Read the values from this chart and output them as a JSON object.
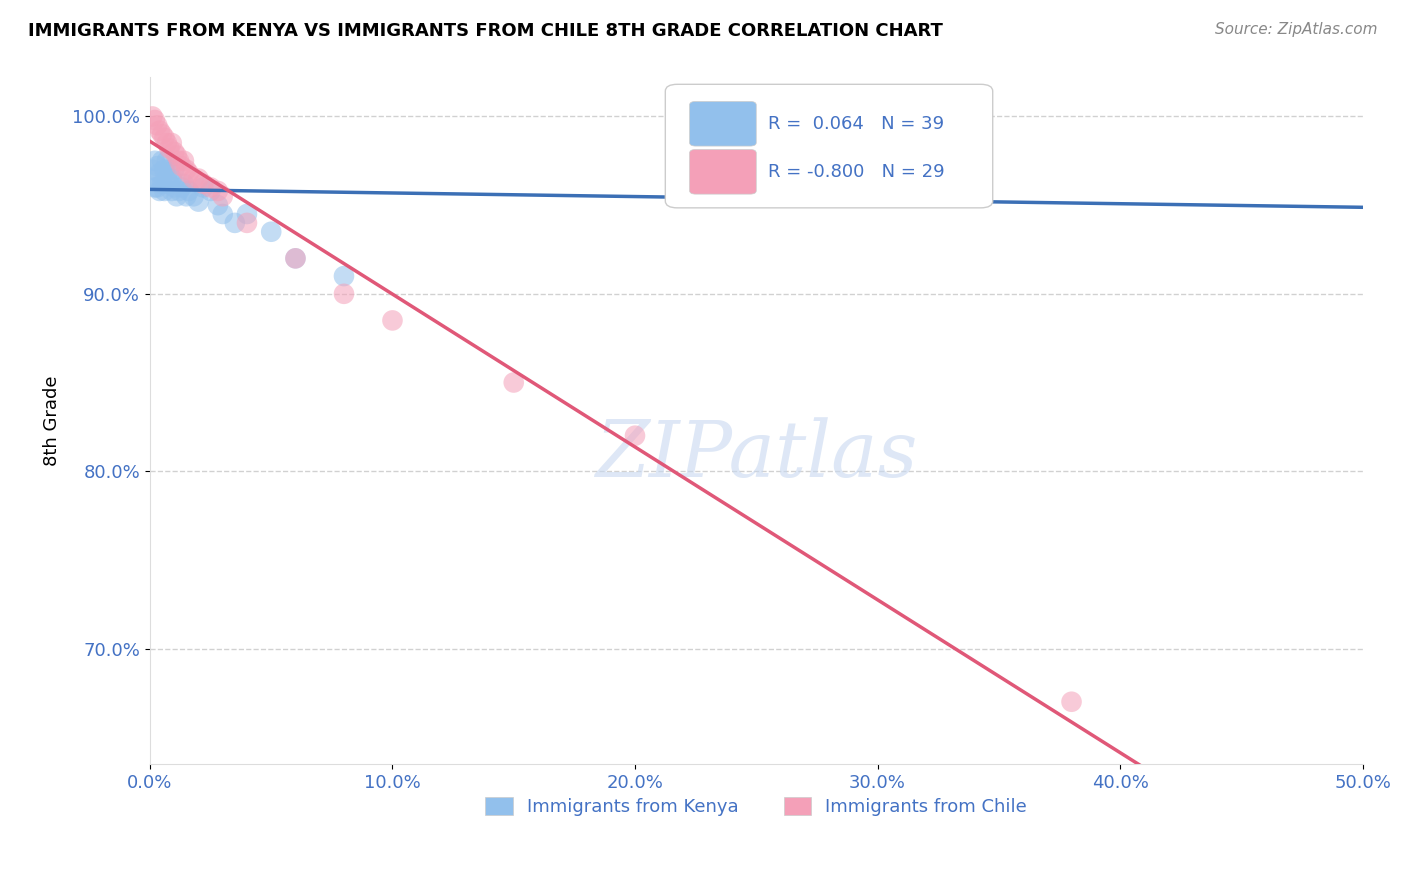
{
  "title": "IMMIGRANTS FROM KENYA VS IMMIGRANTS FROM CHILE 8TH GRADE CORRELATION CHART",
  "source": "Source: ZipAtlas.com",
  "ylabel": "8th Grade",
  "xlim": [
    0.0,
    0.5
  ],
  "ylim": [
    0.635,
    1.022
  ],
  "xtick_labels": [
    "0.0%",
    "10.0%",
    "20.0%",
    "30.0%",
    "40.0%",
    "50.0%"
  ],
  "xtick_vals": [
    0.0,
    0.1,
    0.2,
    0.3,
    0.4,
    0.5
  ],
  "ytick_labels": [
    "100.0%",
    "90.0%",
    "80.0%",
    "70.0%"
  ],
  "ytick_vals": [
    1.0,
    0.9,
    0.8,
    0.7
  ],
  "kenya_R": 0.064,
  "kenya_N": 39,
  "chile_R": -0.8,
  "chile_N": 29,
  "kenya_color": "#92C0EC",
  "chile_color": "#F4A0B8",
  "kenya_line_color": "#3B6FB5",
  "chile_line_color": "#E05878",
  "watermark": "ZIPatlas",
  "watermark_color": "#C8D8F0",
  "grid_color": "#CCCCCC",
  "background_color": "#FFFFFF",
  "kenya_x": [
    0.001,
    0.001,
    0.002,
    0.002,
    0.003,
    0.003,
    0.004,
    0.004,
    0.005,
    0.005,
    0.006,
    0.006,
    0.007,
    0.007,
    0.008,
    0.008,
    0.009,
    0.009,
    0.01,
    0.01,
    0.011,
    0.012,
    0.013,
    0.014,
    0.015,
    0.016,
    0.018,
    0.02,
    0.022,
    0.025,
    0.028,
    0.03,
    0.035,
    0.04,
    0.05,
    0.06,
    0.08,
    0.25,
    0.3
  ],
  "kenya_y": [
    0.97,
    0.965,
    0.975,
    0.96,
    0.972,
    0.96,
    0.968,
    0.958,
    0.975,
    0.962,
    0.97,
    0.958,
    0.965,
    0.975,
    0.962,
    0.97,
    0.965,
    0.958,
    0.97,
    0.96,
    0.955,
    0.958,
    0.96,
    0.962,
    0.955,
    0.958,
    0.955,
    0.952,
    0.96,
    0.958,
    0.95,
    0.945,
    0.94,
    0.945,
    0.935,
    0.92,
    0.91,
    0.967,
    0.97
  ],
  "chile_x": [
    0.001,
    0.002,
    0.003,
    0.004,
    0.005,
    0.006,
    0.007,
    0.008,
    0.009,
    0.01,
    0.011,
    0.012,
    0.013,
    0.014,
    0.015,
    0.016,
    0.018,
    0.02,
    0.022,
    0.025,
    0.028,
    0.03,
    0.04,
    0.06,
    0.08,
    0.1,
    0.15,
    0.2,
    0.38
  ],
  "chile_y": [
    1.0,
    0.998,
    0.995,
    0.992,
    0.99,
    0.988,
    0.985,
    0.982,
    0.985,
    0.98,
    0.978,
    0.975,
    0.972,
    0.975,
    0.97,
    0.968,
    0.965,
    0.965,
    0.962,
    0.96,
    0.958,
    0.955,
    0.94,
    0.92,
    0.9,
    0.885,
    0.85,
    0.82,
    0.67
  ]
}
